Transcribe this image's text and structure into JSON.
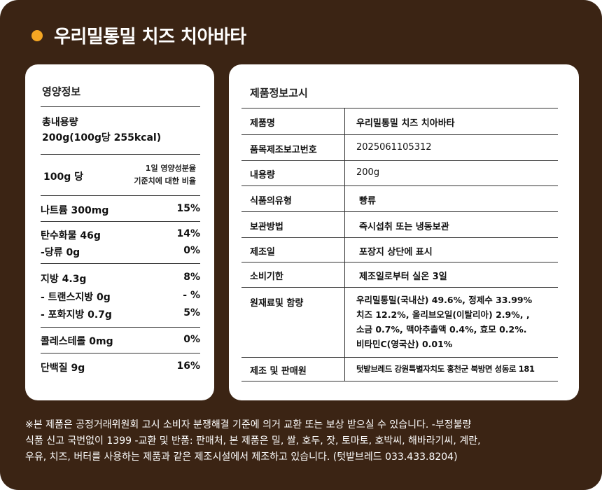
{
  "title": "우리밀통밀 치즈 치아바타",
  "accent_color": "#f5a623",
  "background_color": "#3b2414",
  "nutrition": {
    "heading": "영양정보",
    "total_label": "총내용량",
    "total_value": "200g(100g당 255kcal)",
    "per_label": "100g 당",
    "daily_line1": "1일 영양성분율",
    "daily_line2": "기준치에 대한 비율",
    "rows": [
      {
        "name": "나트륨 300mg",
        "pct": "15%"
      },
      {
        "name": "탄수화물 46g",
        "pct": "14%"
      },
      {
        "name": "-당류  0g",
        "pct": "0%"
      },
      {
        "name": "지방  4.3g",
        "pct": "8%"
      },
      {
        "name": "- 트랜스지방 0g",
        "pct": "- %"
      },
      {
        "name": "- 포화지방 0.7g",
        "pct": "5%"
      },
      {
        "name": "콜레스테롤  0mg",
        "pct": "0%"
      },
      {
        "name": "단백질 9g",
        "pct": "16%"
      }
    ]
  },
  "product": {
    "heading": "제품정보고시",
    "rows": [
      {
        "label": "제품명",
        "value": "우리밀통밀 치즈 치아바타"
      },
      {
        "label": "품목제조보고번호",
        "value": "2025061105312"
      },
      {
        "label": "내용량",
        "value": "200g"
      },
      {
        "label": "식품의유형",
        "value": "빵류"
      },
      {
        "label": "보관방법",
        "value": "즉시섭취 또는 냉동보관"
      },
      {
        "label": "제조일",
        "value": "포장지 상단에 표시"
      },
      {
        "label": "소비기한",
        "value": "제조일로부터 실온 3일"
      },
      {
        "label": "원재료및 함량",
        "lines": [
          "우리밀통밀(국내산) 49.6%, 정제수 33.99%",
          "치즈 12.2%, 올리브오일(이탈리아) 2.9%, ,",
          "소금 0.7%, 맥아추출액 0.4%, 효모 0.2%.",
          "비타민C(영국산) 0.01%"
        ]
      },
      {
        "label": "제조 및 판매원",
        "value": "텃밭브레드  강원특별자치도 홍천군 북방면 성동로 181"
      }
    ]
  },
  "footer": {
    "lines": [
      "※본 제품은 공정거래위원회 고시 소비자 분쟁해결 기준에 의거 교환 또는 보상 받으실 수 있습니다. -부정불량",
      "식품 신고 국번없이 1399 -교환 및 반품: 판매처, 본 제품은 밀, 쌀, 호두, 잣, 토마토, 호박씨, 해바라기씨, 계란,",
      "우유, 치즈, 버터를 사용하는 제품과 같은 제조시설에서 제조하고 있습니다. (텃밭브레드 033.433.8204)"
    ]
  }
}
